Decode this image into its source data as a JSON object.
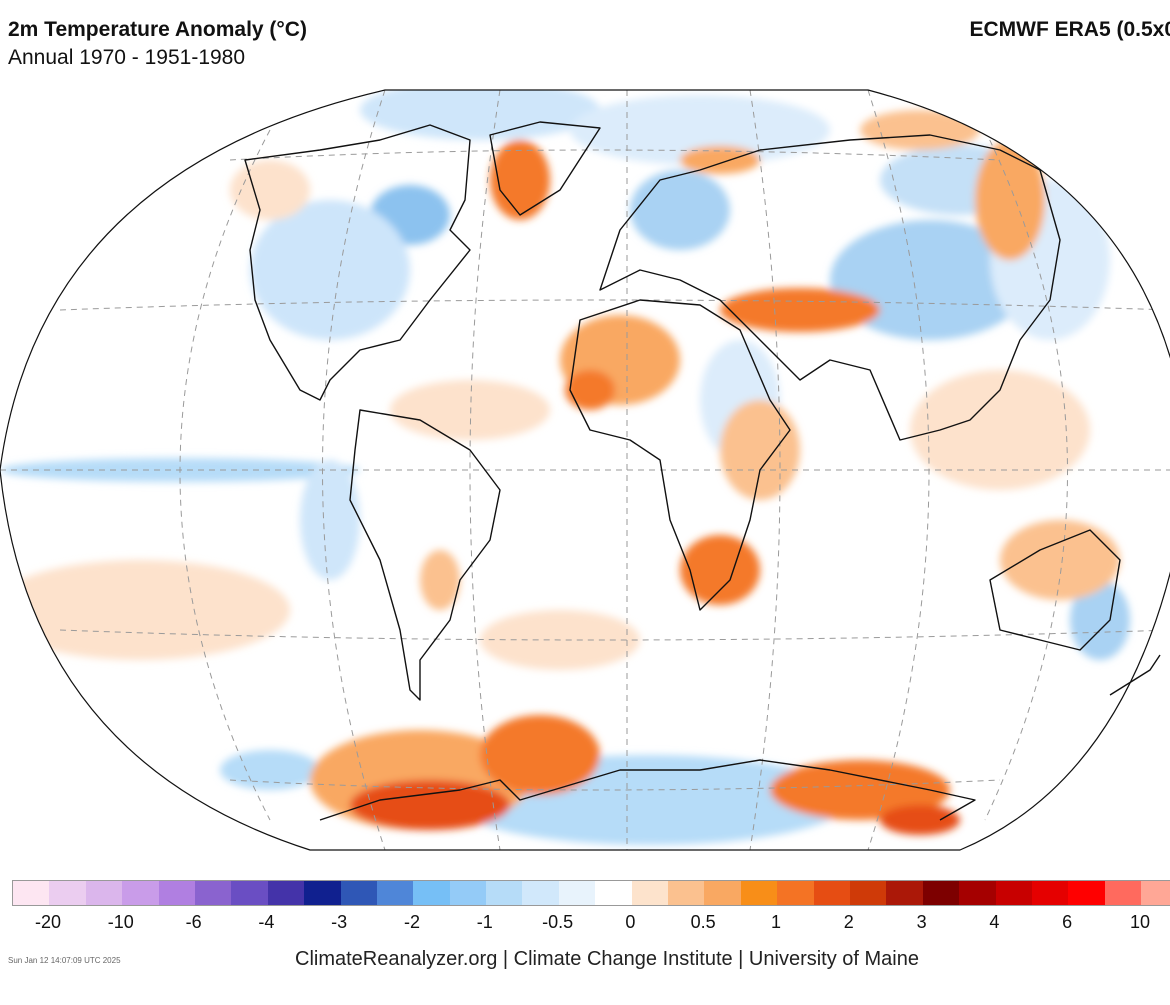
{
  "header": {
    "title": "2m Temperature Anomaly (°C)",
    "subtitle": "Annual 1970 - 1951-1980",
    "source": "ECMWF ERA5 (0.5x0"
  },
  "map": {
    "projection": "Robinson-like world map",
    "colors": {
      "ocean": "#ffffff",
      "coast": "#111111",
      "grid": "#9a9a9a",
      "warm_light": "#fde2cc",
      "warm_mid": "#f9a862",
      "warm_strong": "#f4792c",
      "warm_deep": "#d8401a",
      "cool_light": "#dcecfb",
      "cool_mid": "#a9d2f3",
      "cool_strong": "#76b4ea"
    }
  },
  "legend": {
    "colors": [
      "#fde6f2",
      "#ebcdf0",
      "#dbb6ec",
      "#c99ce9",
      "#b07fe1",
      "#8a63cf",
      "#6a4ec3",
      "#4433a9",
      "#10208f",
      "#2f57b6",
      "#4f86d8",
      "#76bff6",
      "#94cbf7",
      "#b6dcf8",
      "#d1e8fb",
      "#e8f3fc",
      "#ffffff",
      "#fde3cc",
      "#fbc18f",
      "#f9a862",
      "#f88e18",
      "#f47324",
      "#e64d13",
      "#cf3a08",
      "#ab1808",
      "#7d0000",
      "#a50000",
      "#c80000",
      "#e50000",
      "#ff0000",
      "#ff6a5e",
      "#ffa796"
    ],
    "tick_labels": [
      "-20",
      "-10",
      "-6",
      "-4",
      "-3",
      "-2",
      "-1",
      "-0.5",
      "0",
      "0.5",
      "1",
      "2",
      "3",
      "4",
      "6",
      "10"
    ]
  },
  "footer": {
    "timestamp": "Sun Jan 12 14:07:09 UTC 2025",
    "credit": "ClimateReanalyzer.org | Climate Change Institute | University of Maine"
  }
}
